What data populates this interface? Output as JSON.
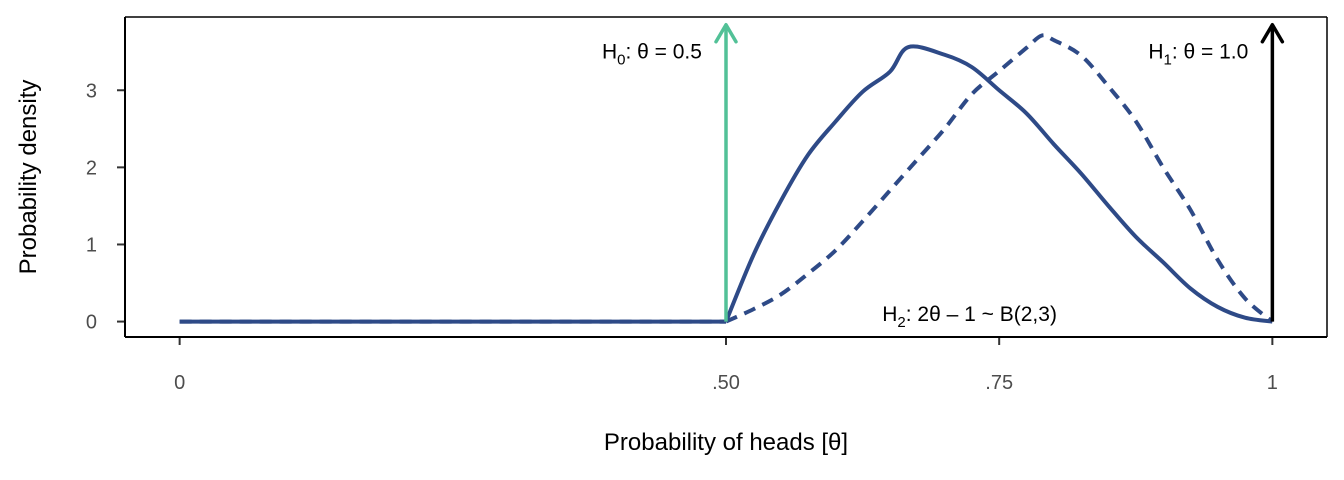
{
  "chart_data": {
    "type": "line",
    "xlabel": "Probability of heads [θ]",
    "ylabel": "Probability density",
    "xlim": [
      -0.05,
      1.05
    ],
    "ylim": [
      -0.2,
      3.95
    ],
    "x_ticks": [
      0,
      0.5,
      0.75,
      1
    ],
    "x_tick_labels": [
      "0",
      ".50",
      ".75",
      "1"
    ],
    "y_ticks": [
      0,
      1,
      2,
      3
    ],
    "y_tick_labels": [
      "0",
      "1",
      "2",
      "3"
    ],
    "grid": false,
    "series": [
      {
        "style": "solid",
        "color": "#2e4a87",
        "x": [
          0,
          0.1,
          0.2,
          0.3,
          0.4,
          0.5,
          0.525,
          0.55,
          0.575,
          0.6,
          0.625,
          0.65,
          0.667,
          0.7,
          0.725,
          0.75,
          0.775,
          0.8,
          0.825,
          0.85,
          0.875,
          0.9,
          0.925,
          0.95,
          0.975,
          1.0
        ],
        "y": [
          0,
          0,
          0,
          0,
          0,
          0,
          0.86,
          1.56,
          2.16,
          2.59,
          2.98,
          3.24,
          3.56,
          3.46,
          3.3,
          3.0,
          2.7,
          2.3,
          1.92,
          1.5,
          1.1,
          0.77,
          0.43,
          0.19,
          0.05,
          0
        ]
      },
      {
        "style": "dashed",
        "color": "#2e4a87",
        "x": [
          0,
          0.1,
          0.2,
          0.3,
          0.4,
          0.5,
          0.525,
          0.55,
          0.575,
          0.6,
          0.625,
          0.65,
          0.675,
          0.7,
          0.725,
          0.75,
          0.775,
          0.789,
          0.8,
          0.825,
          0.85,
          0.875,
          0.9,
          0.925,
          0.95,
          0.975,
          1.0
        ],
        "y": [
          0,
          0,
          0,
          0,
          0,
          0,
          0.16,
          0.35,
          0.62,
          0.92,
          1.3,
          1.7,
          2.1,
          2.5,
          2.95,
          3.25,
          3.55,
          3.71,
          3.65,
          3.45,
          3.05,
          2.6,
          2.0,
          1.45,
          0.8,
          0.3,
          0
        ]
      }
    ],
    "arrows": [
      {
        "x": 0.5,
        "y_from": 0,
        "y_to": 3.85,
        "color": "#52c197"
      },
      {
        "x": 1.0,
        "y_from": 0,
        "y_to": 3.85,
        "color": "#000000"
      }
    ],
    "annotations": [
      {
        "id": "h0",
        "main": "H",
        "sub": "0",
        "rest": ": θ = 0.5",
        "x": 0.478,
        "y": 3.5,
        "anchor": "end"
      },
      {
        "id": "h1",
        "main": "H",
        "sub": "1",
        "rest": ": θ = 1.0",
        "x": 0.978,
        "y": 3.5,
        "anchor": "end"
      },
      {
        "id": "h2",
        "main": "H",
        "sub": "2",
        "rest": ": 2θ – 1 ~ B(2,3)",
        "x": 0.643,
        "y": 0.1,
        "anchor": "start"
      }
    ]
  }
}
